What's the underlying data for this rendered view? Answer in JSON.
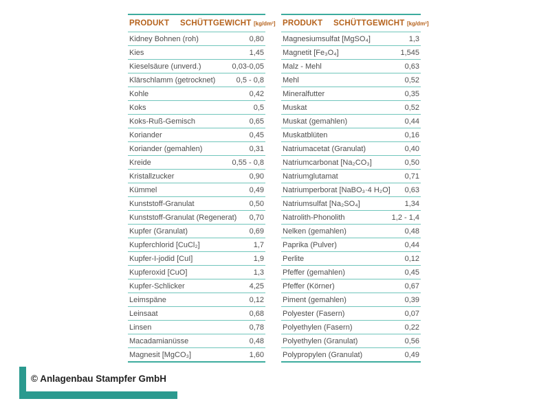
{
  "colors": {
    "table_border_teal": "#3cab9e",
    "row_divider_teal": "#6fc5bb",
    "logo_teal": "#2b9a8f",
    "header_orange": "#b5621c",
    "body_text": "#4d4d4d"
  },
  "tables": [
    {
      "header": {
        "product": "PRODUKT",
        "weight": "SCHÜTTGEWICHT",
        "unit": "[kg/dm³]"
      },
      "rows": [
        {
          "product": "Kidney Bohnen (roh)",
          "value": "0,80"
        },
        {
          "product": "Kies",
          "value": "1,45"
        },
        {
          "product": "Kieselsäure (unverd.)",
          "value": "0,03-0,05"
        },
        {
          "product": "Klärschlamm (getrocknet)",
          "value": "0,5 - 0,8"
        },
        {
          "product": "Kohle",
          "value": "0,42"
        },
        {
          "product": "Koks",
          "value": "0,5"
        },
        {
          "product": "Koks-Ruß-Gemisch",
          "value": "0,65"
        },
        {
          "product": "Koriander",
          "value": "0,45"
        },
        {
          "product": "Koriander (gemahlen)",
          "value": "0,31"
        },
        {
          "product": "Kreide",
          "value": "0,55 - 0,8"
        },
        {
          "product": "Kristallzucker",
          "value": "0,90"
        },
        {
          "product": "Kümmel",
          "value": "0,49"
        },
        {
          "product": "Kunststoff-Granulat",
          "value": "0,50"
        },
        {
          "product": "Kunststoff-Granulat (Regenerat)",
          "value": "0,70"
        },
        {
          "product": "Kupfer (Granulat)",
          "value": "0,69"
        },
        {
          "product": "Kupferchlorid [CuCl₂]",
          "value": "1,7"
        },
        {
          "product": "Kupfer-I-jodid [CuI]",
          "value": "1,9"
        },
        {
          "product": "Kupferoxid [CuO]",
          "value": "1,3"
        },
        {
          "product": "Kupfer-Schlicker",
          "value": "4,25"
        },
        {
          "product": "Leimspäne",
          "value": "0,12"
        },
        {
          "product": "Leinsaat",
          "value": "0,68"
        },
        {
          "product": "Linsen",
          "value": "0,78"
        },
        {
          "product": "Macadamianüsse",
          "value": "0,48"
        },
        {
          "product": "Magnesit [MgCO₃]",
          "value": "1,60"
        }
      ]
    },
    {
      "header": {
        "product": "PRODUKT",
        "weight": "SCHÜTTGEWICHT",
        "unit": "[kg/dm³]"
      },
      "rows": [
        {
          "product": "Magnesiumsulfat [MgSO₄]",
          "value": "1,3"
        },
        {
          "product": "Magnetit [Fe₃O₄]",
          "value": "1,545"
        },
        {
          "product": "Malz - Mehl",
          "value": "0,63"
        },
        {
          "product": "Mehl",
          "value": "0,52"
        },
        {
          "product": "Mineralfutter",
          "value": "0,35"
        },
        {
          "product": "Muskat",
          "value": "0,52"
        },
        {
          "product": "Muskat (gemahlen)",
          "value": "0,44"
        },
        {
          "product": "Muskatblüten",
          "value": "0,16"
        },
        {
          "product": "Natriumacetat (Granulat)",
          "value": "0,40"
        },
        {
          "product": "Natriumcarbonat [Na₂CO₃]",
          "value": "0,50"
        },
        {
          "product": "Natriumglutamat",
          "value": "0,71"
        },
        {
          "product": "Natriumperborat [NaBO₃·4 H₂O]",
          "value": "0,63"
        },
        {
          "product": "Natriumsulfat [Na₂SO₄]",
          "value": "1,34"
        },
        {
          "product": "Natrolith-Phonolith",
          "value": "1,2 - 1,4"
        },
        {
          "product": "Nelken (gemahlen)",
          "value": "0,48"
        },
        {
          "product": "Paprika (Pulver)",
          "value": "0,44"
        },
        {
          "product": "Perlite",
          "value": "0,12"
        },
        {
          "product": "Pfeffer (gemahlen)",
          "value": "0,45"
        },
        {
          "product": "Pfeffer (Körner)",
          "value": "0,67"
        },
        {
          "product": "Piment (gemahlen)",
          "value": "0,39"
        },
        {
          "product": "Polyester (Fasern)",
          "value": "0,07"
        },
        {
          "product": "Polyethylen (Fasern)",
          "value": "0,22"
        },
        {
          "product": "Polyethylen (Granulat)",
          "value": "0,56"
        },
        {
          "product": "Polypropylen (Granulat)",
          "value": "0,49"
        }
      ]
    }
  ],
  "footer": {
    "copyright": "© Anlagenbau Stampfer GmbH"
  }
}
